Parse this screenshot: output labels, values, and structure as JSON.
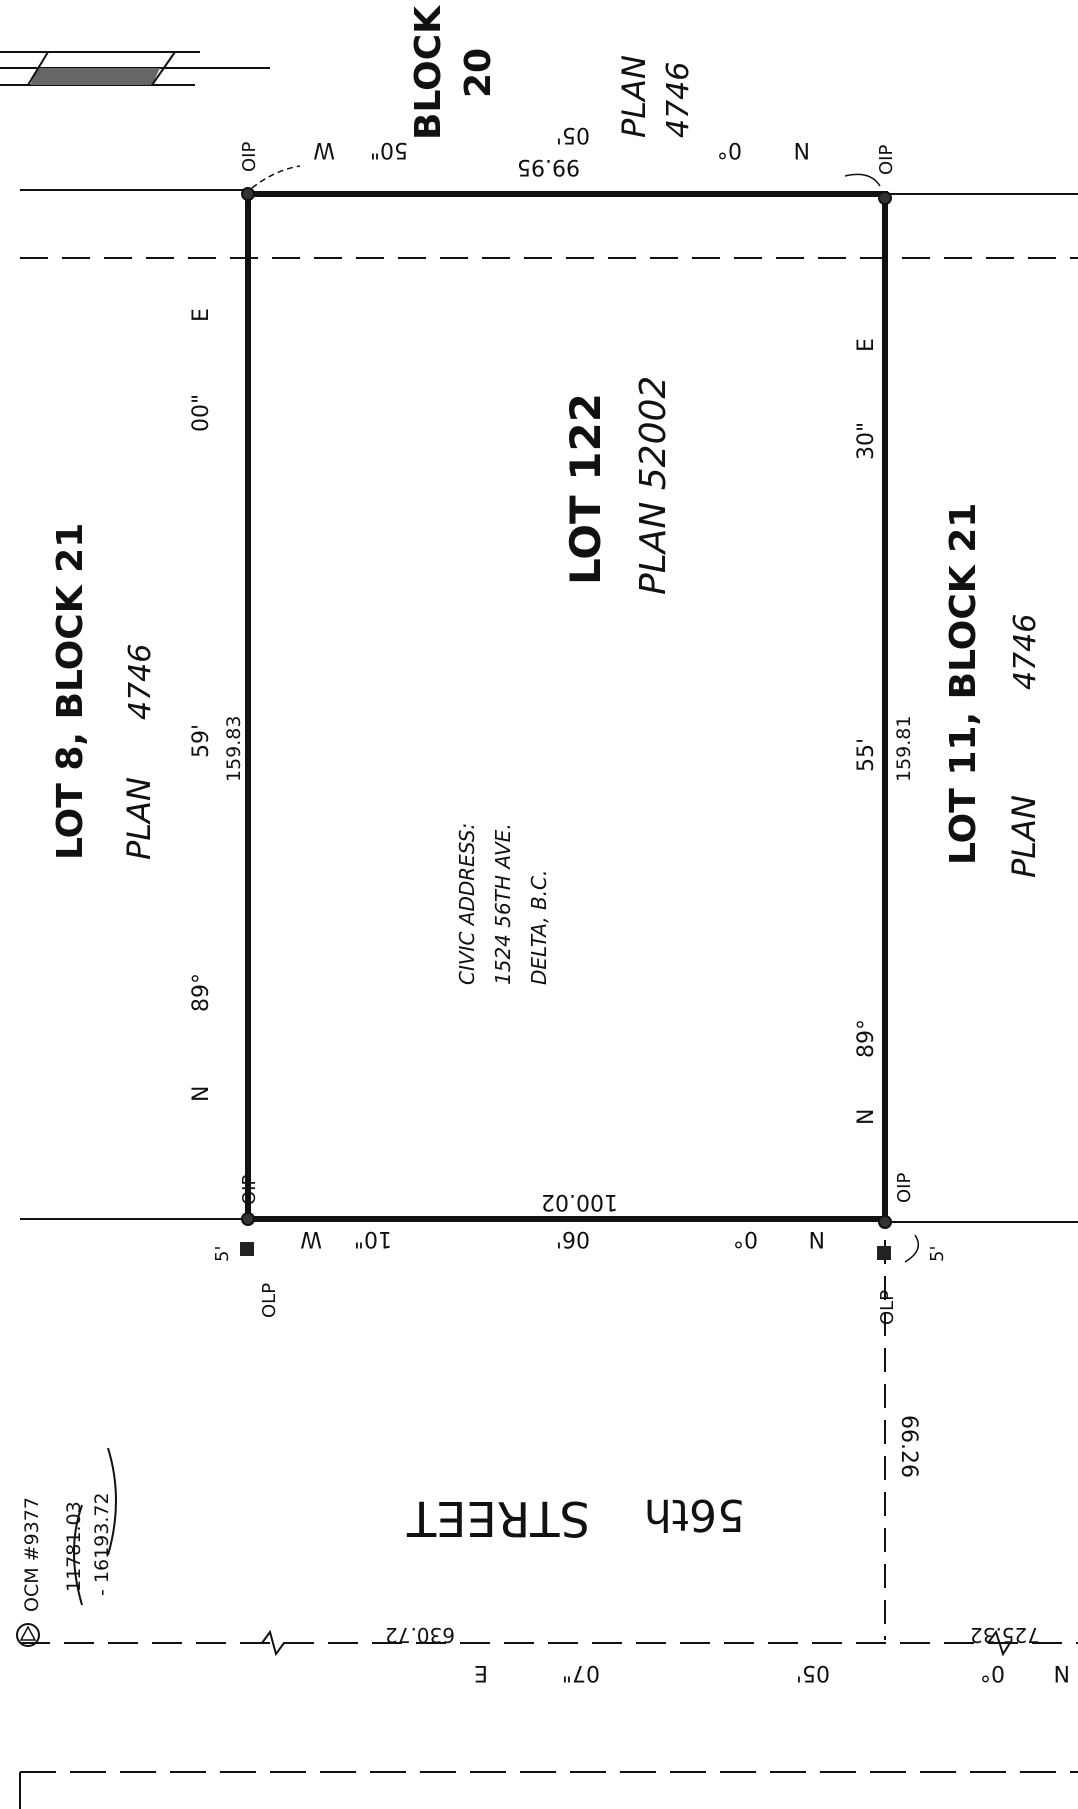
{
  "lot": {
    "title": "LOT 122",
    "plan": "PLAN 52002"
  },
  "civic_address": {
    "line1": "CIVIC ADDRESS:",
    "line2": "1524 56TH AVE.",
    "line3": "DELTA, B.C."
  },
  "north_block": {
    "block": "BLOCK",
    "number": "20",
    "plan_label": "PLAN",
    "plan_number": "4746"
  },
  "west_lot": {
    "title": "LOT 8, BLOCK 21",
    "plan_label": "PLAN",
    "plan_number": "4746"
  },
  "east_lot": {
    "title": "LOT 11, BLOCK 21",
    "plan_label": "PLAN",
    "plan_number": "4746"
  },
  "street": {
    "number": "56th",
    "name": "STREET"
  },
  "markers": {
    "oip": "OIP",
    "olp": "OLP",
    "offset": "5'"
  },
  "bearings": {
    "top": {
      "n": "N",
      "deg": "0°",
      "min": "05'",
      "sec": "50\"",
      "dir": "W",
      "distance": "99.95"
    },
    "west": {
      "n": "N",
      "deg": "89°",
      "min": "59'",
      "sec": "00\"",
      "dir": "E",
      "distance": "159.83"
    },
    "east": {
      "n": "N",
      "deg": "89°",
      "min": "55'",
      "sec": "30\"",
      "dir": "E",
      "distance": "159.81"
    },
    "bottom": {
      "n": "N",
      "deg": "0°",
      "min": "06'",
      "sec": "10\"",
      "dir": "W",
      "distance": "100.02"
    },
    "street_line": {
      "n": "N",
      "deg": "0°",
      "min": "05'",
      "sec": "07\"",
      "dir": "E",
      "distance_left": "630.72",
      "distance_right": "725.32"
    },
    "street_width": "66.26"
  },
  "ocm": {
    "label": "OCM #9377",
    "coord1": "11781.03",
    "coord2": "- 16193.72"
  }
}
